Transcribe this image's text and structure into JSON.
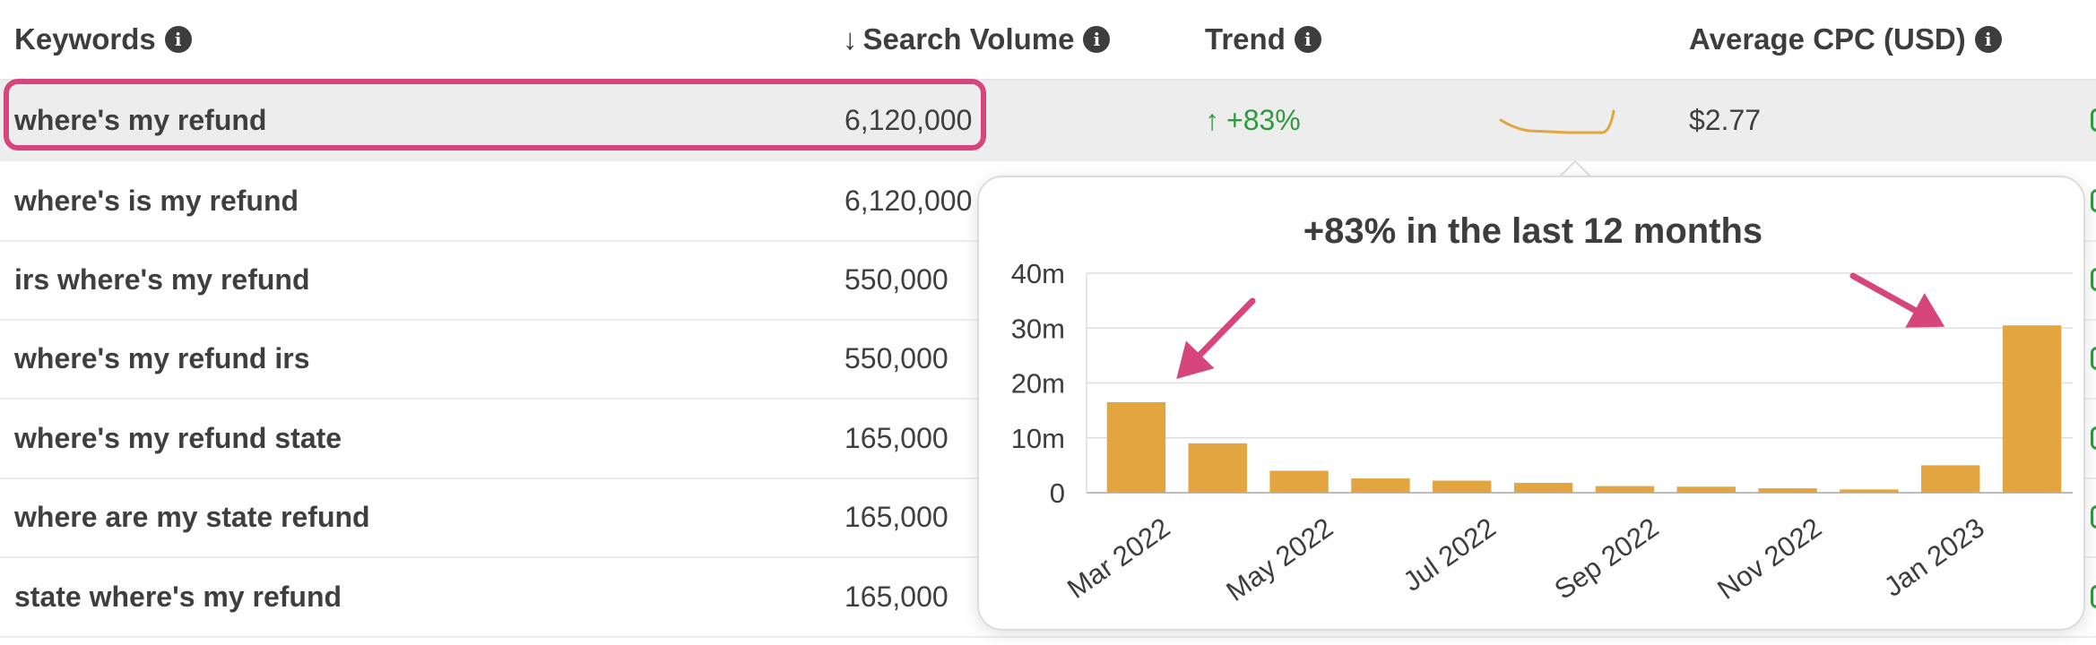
{
  "header": {
    "keywords": "Keywords",
    "search_volume_arrow": "↓",
    "search_volume": "Search Volume",
    "trend": "Trend",
    "avg_cpc": "Average CPC (USD)",
    "info_glyph": "i"
  },
  "rows": [
    {
      "keyword": "where's my refund",
      "volume": "6,120,000",
      "trend_arrow": "↑",
      "trend": "+83%",
      "cpc": "$2.77"
    },
    {
      "keyword": "where's is my refund",
      "volume": "6,120,000"
    },
    {
      "keyword": "irs where's my refund",
      "volume": "550,000"
    },
    {
      "keyword": "where's my refund irs",
      "volume": "550,000"
    },
    {
      "keyword": "where's my refund state",
      "volume": "165,000"
    },
    {
      "keyword": "where are my state refund",
      "volume": "165,000"
    },
    {
      "keyword": "state where's my refund",
      "volume": "165,000"
    }
  ],
  "colors": {
    "accent_pink": "#d6457c",
    "bar_orange": "#e2a540",
    "trend_green": "#2e9a3e"
  },
  "popup": {
    "title": "+83% in the last 12 months"
  },
  "chart_data": {
    "type": "bar",
    "title": "+83% in the last 12 months",
    "categories": [
      "Mar 2022",
      "Apr 2022",
      "May 2022",
      "Jun 2022",
      "Jul 2022",
      "Aug 2022",
      "Sep 2022",
      "Oct 2022",
      "Nov 2022",
      "Dec 2022",
      "Jan 2023",
      "Feb 2023"
    ],
    "values": [
      16.5,
      9.0,
      4.0,
      2.6,
      2.2,
      1.8,
      1.2,
      1.1,
      0.8,
      0.6,
      5.0,
      30.5
    ],
    "unit": "m",
    "ylim": [
      0,
      40
    ],
    "yticks": [
      "0",
      "10m",
      "20m",
      "30m",
      "40m"
    ],
    "yticks_values": [
      0,
      10,
      20,
      30,
      40
    ],
    "xtick_labels": [
      "Mar 2022",
      "May 2022",
      "Jul 2022",
      "Sep 2022",
      "Nov 2022",
      "Jan 2023"
    ],
    "grid": true,
    "legend": "none"
  }
}
